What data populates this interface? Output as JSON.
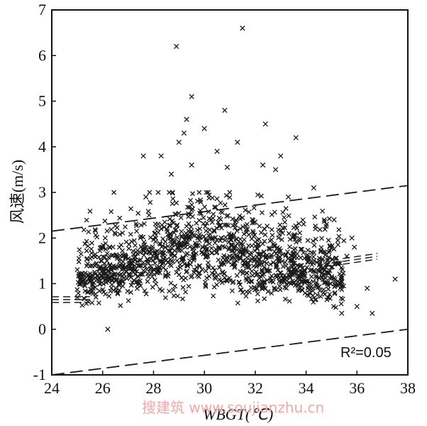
{
  "chart_data": {
    "type": "scatter",
    "xlabel": "WBGT(℃)",
    "ylabel": "风速(m/s)",
    "xlim": [
      24,
      38
    ],
    "ylim": [
      -1,
      7
    ],
    "xticks": [
      24,
      26,
      28,
      30,
      32,
      34,
      36,
      38
    ],
    "yticks": [
      -1,
      0,
      1,
      2,
      3,
      4,
      5,
      6,
      7
    ],
    "grid": false,
    "annotation": "R²=0.05",
    "marker": "x",
    "outliers": [
      {
        "x": 28.9,
        "y": 6.2
      },
      {
        "x": 31.5,
        "y": 6.6
      },
      {
        "x": 29.5,
        "y": 5.1
      },
      {
        "x": 30.8,
        "y": 4.8
      },
      {
        "x": 29.3,
        "y": 4.6
      },
      {
        "x": 32.4,
        "y": 4.5
      },
      {
        "x": 30.0,
        "y": 4.4
      },
      {
        "x": 29.2,
        "y": 4.3
      },
      {
        "x": 33.6,
        "y": 4.2
      },
      {
        "x": 31.3,
        "y": 4.1
      },
      {
        "x": 29.0,
        "y": 4.1
      },
      {
        "x": 30.5,
        "y": 3.9
      },
      {
        "x": 27.6,
        "y": 3.8
      },
      {
        "x": 33.0,
        "y": 3.8
      },
      {
        "x": 28.3,
        "y": 3.8
      },
      {
        "x": 32.3,
        "y": 3.6
      },
      {
        "x": 29.5,
        "y": 3.6
      },
      {
        "x": 30.9,
        "y": 3.55
      },
      {
        "x": 32.8,
        "y": 3.5
      },
      {
        "x": 28.7,
        "y": 3.4
      },
      {
        "x": 34.3,
        "y": 3.1
      },
      {
        "x": 27.7,
        "y": 2.9
      },
      {
        "x": 33.3,
        "y": 2.9
      },
      {
        "x": 26.1,
        "y": 2.0
      },
      {
        "x": 35.1,
        "y": 2.4
      },
      {
        "x": 35.8,
        "y": 2.0
      },
      {
        "x": 35.9,
        "y": 1.8
      },
      {
        "x": 35.6,
        "y": 1.6
      },
      {
        "x": 37.5,
        "y": 1.1
      },
      {
        "x": 36.4,
        "y": 0.9
      },
      {
        "x": 36.0,
        "y": 0.5
      },
      {
        "x": 36.6,
        "y": 0.35
      },
      {
        "x": 26.2,
        "y": 0.0
      },
      {
        "x": 35.4,
        "y": 0.35
      },
      {
        "x": 25.3,
        "y": 1.1
      },
      {
        "x": 34.8,
        "y": 2.3
      }
    ],
    "bulk_cloud": {
      "count": 1400,
      "x_range": [
        25.0,
        35.5
      ],
      "y_range": [
        0.0,
        3.0
      ],
      "center_y": 0.7
    },
    "lines": [
      {
        "name": "regression",
        "points": [
          [
            24,
            0.65
          ],
          [
            25.5,
            0.65
          ],
          [
            35,
            1.45
          ],
          [
            36.8,
            1.6
          ]
        ],
        "style": "dashed-triple"
      },
      {
        "name": "upper-bound",
        "points": [
          [
            24,
            2.15
          ],
          [
            38,
            3.15
          ]
        ],
        "style": "dashed"
      },
      {
        "name": "lower-bound",
        "points": [
          [
            24,
            -1.0
          ],
          [
            38,
            0.0
          ]
        ],
        "style": "dashed"
      }
    ],
    "colors": {
      "marker": "#1a1a1a",
      "lines": "#1a1a1a",
      "background": "#ffffff"
    }
  },
  "watermark": "搜建筑 www.soujianzhu.cn"
}
